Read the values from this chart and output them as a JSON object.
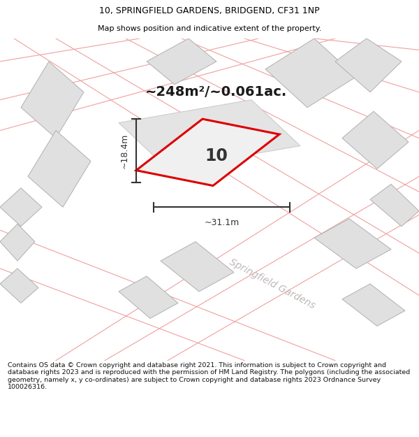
{
  "title_line1": "10, SPRINGFIELD GARDENS, BRIDGEND, CF31 1NP",
  "title_line2": "Map shows position and indicative extent of the property.",
  "area_text": "~248m²/~0.061ac.",
  "number_label": "10",
  "dim_width": "~31.1m",
  "dim_height": "~18.4m",
  "street_label": "Springfield Gardens",
  "footer_text": "Contains OS data © Crown copyright and database right 2021. This information is subject to Crown copyright and database rights 2023 and is reproduced with the permission of HM Land Registry. The polygons (including the associated geometry, namely x, y co-ordinates) are subject to Crown copyright and database rights 2023 Ordnance Survey 100026316.",
  "bg_color": "#ffffff",
  "map_bg": "#ffffff",
  "building_fill": "#e0e0e0",
  "building_edge": "#b0b0b0",
  "road_line_color": "#f0a0a0",
  "plot_fill": "#e8e8e8",
  "plot_outline_color": "#dd0000",
  "dim_line_color": "#333333",
  "street_text_color": "#c0b8b8",
  "title_color": "#000000",
  "footer_color": "#111111"
}
